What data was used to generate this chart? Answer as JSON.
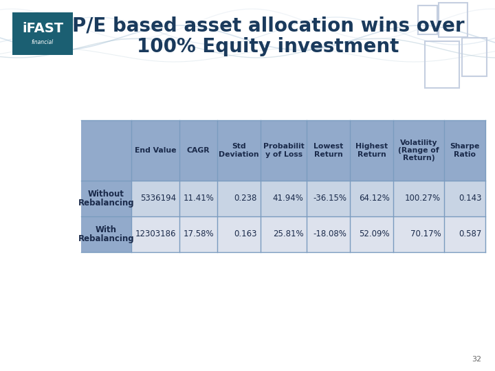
{
  "title_line1": "P/E based asset allocation wins over",
  "title_line2": "100% Equity investment",
  "title_color": "#1a3a5c",
  "background_color": "#ffffff",
  "header_bg": "#92aacb",
  "row1_bg": "#c8d4e4",
  "row2_bg": "#dde2ed",
  "label_col_bg_header": "#92aacb",
  "label_col_bg_row1": "#92aacb",
  "label_col_bg_row2": "#92aacb",
  "col_headers_line1": [
    "End Value",
    "CAGR",
    "Std",
    "Probabilit",
    "Lowest",
    "Highest",
    "Volatility",
    "Sharpe"
  ],
  "col_headers_line2": [
    "",
    "",
    "Deviation",
    "y of Loss",
    "Return",
    "Return",
    "(Range of",
    "Ratio"
  ],
  "col_headers_line3": [
    "",
    "",
    "",
    "",
    "",
    "",
    "Return)",
    ""
  ],
  "row_labels": [
    [
      "Without",
      "Rebalancing"
    ],
    [
      "With",
      "Rebalancing"
    ]
  ],
  "row1_data": [
    "5336194",
    "11.41%",
    "0.238",
    "41.94%",
    "-36.15%",
    "64.12%",
    "100.27%",
    "0.143"
  ],
  "row2_data": [
    "12303186",
    "17.58%",
    "0.163",
    "25.81%",
    "-18.08%",
    "52.09%",
    "70.17%",
    "0.587"
  ],
  "page_number": "32",
  "ifast_logo_color": "#1b5f72",
  "ifast_text_color": "#ffffff",
  "border_color": "#7a9bbf",
  "text_color": "#1a2a4a",
  "deco_color": "#c5cfe0"
}
